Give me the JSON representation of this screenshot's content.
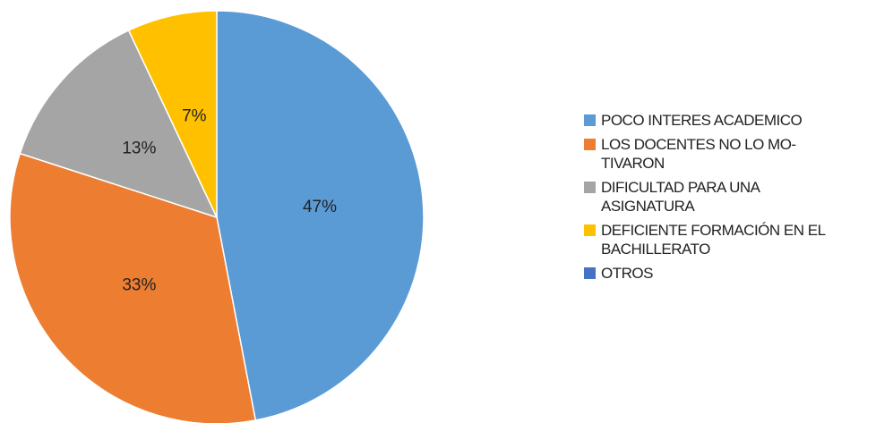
{
  "chart_data": {
    "type": "pie",
    "categories": [
      "POCO INTERES ACADEMICO",
      "LOS DOCENTES NO LO MO-TIVARON",
      "DIFICULTAD PARA UNA ASIGNATURA",
      "DEFICIENTE FORMACIÓN EN EL BACHILLERATO",
      "OTROS"
    ],
    "values": [
      47,
      33,
      13,
      7,
      0
    ],
    "value_labels": [
      "47%",
      "33%",
      "13%",
      "7%",
      null
    ],
    "colors": [
      "#5b9bd5",
      "#ed7d31",
      "#a5a5a5",
      "#ffc000",
      "#4472c4"
    ],
    "legend": "right"
  }
}
